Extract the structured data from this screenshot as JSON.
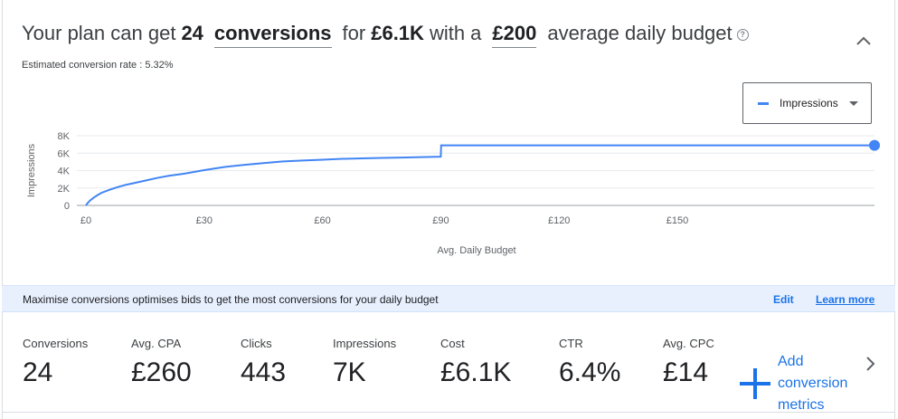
{
  "headline": {
    "prefix": "Your plan can get",
    "conversions_count": "24",
    "metric_word": "conversions",
    "for_word": "for",
    "cost": "£6.1K",
    "with_a": "with a",
    "budget": "£200",
    "suffix": "average daily budget",
    "help_glyph": "?"
  },
  "subtitle": "Estimated conversion rate : 5.32%",
  "metric_selector": {
    "label": "Impressions",
    "icon": "line-swatch",
    "color": "#4285f4"
  },
  "chart_data": {
    "type": "line",
    "ylabel": "Impressions",
    "xlabel": "Avg. Daily Budget",
    "y_ticks": [
      "8K",
      "6K",
      "4K",
      "2K",
      "0"
    ],
    "x_ticks": [
      "£0",
      "£30",
      "£60",
      "£90",
      "£120",
      "£150"
    ],
    "xlim": [
      0,
      200
    ],
    "ylim": [
      0,
      8000
    ],
    "grid": true,
    "series": [
      {
        "color": "#4285f4",
        "x": [
          0,
          0.5,
          1,
          2,
          3,
          4,
          6,
          8,
          10,
          12,
          15,
          18,
          21,
          25,
          30,
          35,
          40,
          45,
          50,
          55,
          60,
          65,
          70,
          75,
          80,
          85,
          90,
          90.1,
          95,
          100,
          105,
          110,
          120,
          130,
          140,
          150,
          160,
          170,
          180,
          190,
          200
        ],
        "y": [
          0,
          300,
          550,
          900,
          1200,
          1450,
          1800,
          2100,
          2350,
          2550,
          2850,
          3150,
          3400,
          3650,
          4050,
          4400,
          4650,
          4850,
          5050,
          5150,
          5250,
          5350,
          5400,
          5450,
          5500,
          5550,
          5600,
          6900,
          6900,
          6900,
          6900,
          6900,
          6900,
          6900,
          6900,
          6900,
          6900,
          6900,
          6900,
          6900,
          6900
        ]
      }
    ],
    "end_marker": {
      "x": 200,
      "y": 6900
    }
  },
  "banner": {
    "text": "Maximise conversions optimises bids to get the most conversions for your daily budget",
    "edit": "Edit",
    "learn_more": "Learn more"
  },
  "metrics": [
    {
      "label": "Conversions",
      "value": "24"
    },
    {
      "label": "Avg. CPA",
      "value": "£260"
    },
    {
      "label": "Clicks",
      "value": "443"
    },
    {
      "label": "Impressions",
      "value": "7K"
    },
    {
      "label": "Cost",
      "value": "£6.1K"
    },
    {
      "label": "CTR",
      "value": "6.4%"
    },
    {
      "label": "Avg. CPC",
      "value": "£14"
    }
  ],
  "add_metrics": {
    "line1": "Add conversion",
    "line2": "metrics"
  },
  "icons": {
    "collapse": "chevron-up-icon",
    "next": "chevron-right-icon",
    "add": "plus-icon",
    "help": "help-circle-icon"
  }
}
